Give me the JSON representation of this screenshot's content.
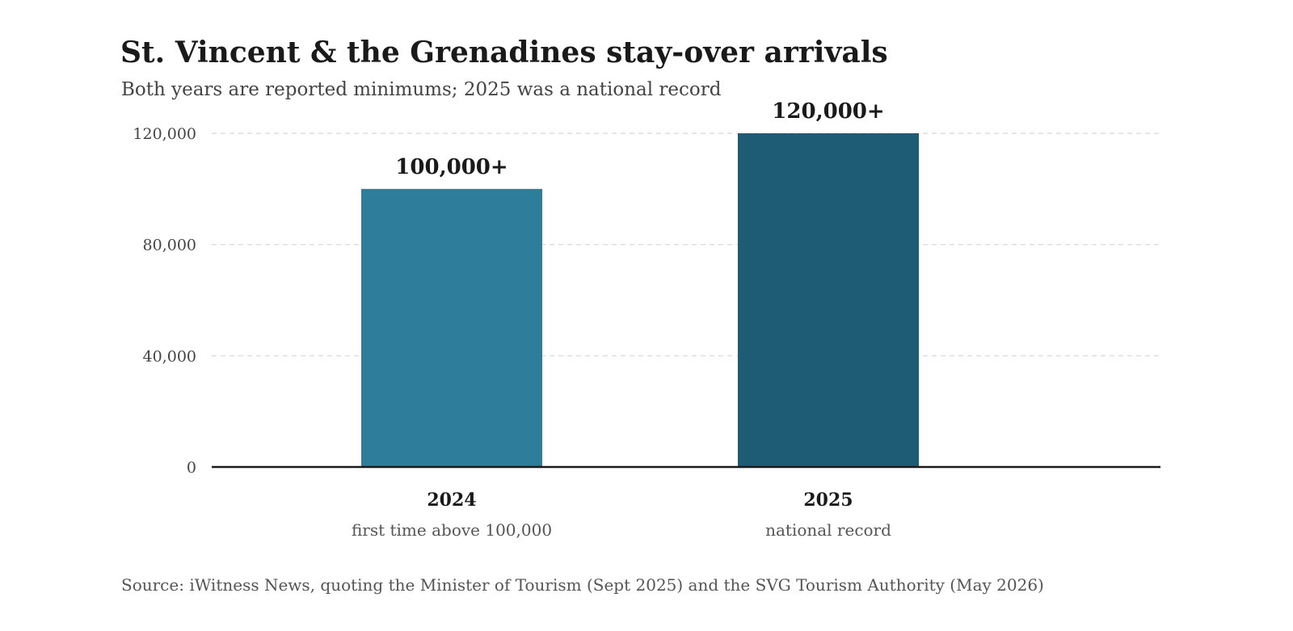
{
  "chart_data": {
    "type": "bar",
    "title": "St. Vincent & the Grenadines stay-over arrivals",
    "subtitle": "Both years are reported minimums; 2025 was a national record",
    "source": "Source: iWitness News, quoting the Minister of Tourism (Sept 2025) and the SVG Tourism Authority (May 2026)",
    "categories": [
      "2024",
      "2025"
    ],
    "category_notes": [
      "first time above 100,000",
      "national record"
    ],
    "values": [
      100000,
      120000
    ],
    "value_labels": [
      "100,000+",
      "120,000+"
    ],
    "colors": [
      "#2e7d9b",
      "#1d5c74"
    ],
    "ylim": [
      0,
      120000
    ],
    "yticks": [
      0,
      40000,
      80000,
      120000
    ],
    "ytick_labels": [
      "0",
      "40,000",
      "80,000",
      "120,000"
    ],
    "grid": true,
    "xlabel": "",
    "ylabel": ""
  }
}
